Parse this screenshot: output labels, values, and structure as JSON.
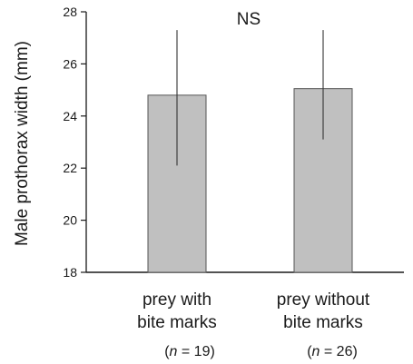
{
  "chart_data": {
    "type": "bar",
    "title": "",
    "xlabel": "",
    "ylabel": "Male prothorax width (mm)",
    "ylim": [
      18,
      28
    ],
    "yticks": [
      18,
      20,
      22,
      24,
      26,
      28
    ],
    "ytick_labels": [
      "18",
      "20",
      "22",
      "24",
      "26",
      "28"
    ],
    "grid": false,
    "legend": "none",
    "bar_color": "#c0c0c0",
    "bar_edge_color": "#555555",
    "annotation": "NS",
    "categories": [
      {
        "line1": "prey with",
        "line2": "bite marks",
        "n_prefix": "(",
        "n_symbol": "n",
        "n_suffix": " = 19)"
      },
      {
        "line1": "prey without",
        "line2": "bite marks",
        "n_prefix": "(",
        "n_symbol": "n",
        "n_suffix": " = 26)"
      }
    ],
    "values": [
      24.8,
      25.05
    ],
    "error_upper": [
      27.3,
      27.3
    ],
    "error_lower": [
      22.1,
      23.1
    ]
  }
}
